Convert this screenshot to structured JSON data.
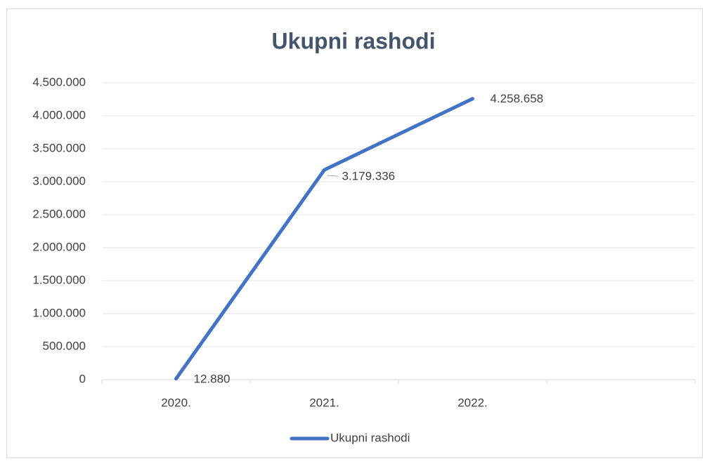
{
  "chart_data": {
    "type": "line",
    "title": "Ukupni rashodi",
    "categories": [
      "2020.",
      "2021.",
      "2022.",
      null
    ],
    "series": [
      {
        "name": "Ukupni rashodi",
        "color": "#4472c4",
        "values": [
          12880,
          3179336,
          4258658,
          null
        ],
        "value_labels": [
          "12.880",
          "3.179.336",
          "4.258.658",
          null
        ]
      }
    ],
    "ylim": [
      0,
      4500000
    ],
    "yticks": [
      0,
      {
        "value": 500000,
        "label": "500.000"
      },
      {
        "value": 1000000,
        "label": "1.000.000"
      },
      {
        "value": 1500000,
        "label": "1.500.000"
      },
      {
        "value": 2000000,
        "label": "2.000.000"
      },
      {
        "value": 2500000,
        "label": "2.500.000"
      },
      {
        "value": 3000000,
        "label": "3.000.000"
      },
      {
        "value": 3500000,
        "label": "3.500.000"
      },
      {
        "value": 4000000,
        "label": "4.000.000"
      },
      {
        "value": 4500000,
        "label": "4.500.000"
      }
    ],
    "grid": true,
    "legend": "bottom"
  }
}
